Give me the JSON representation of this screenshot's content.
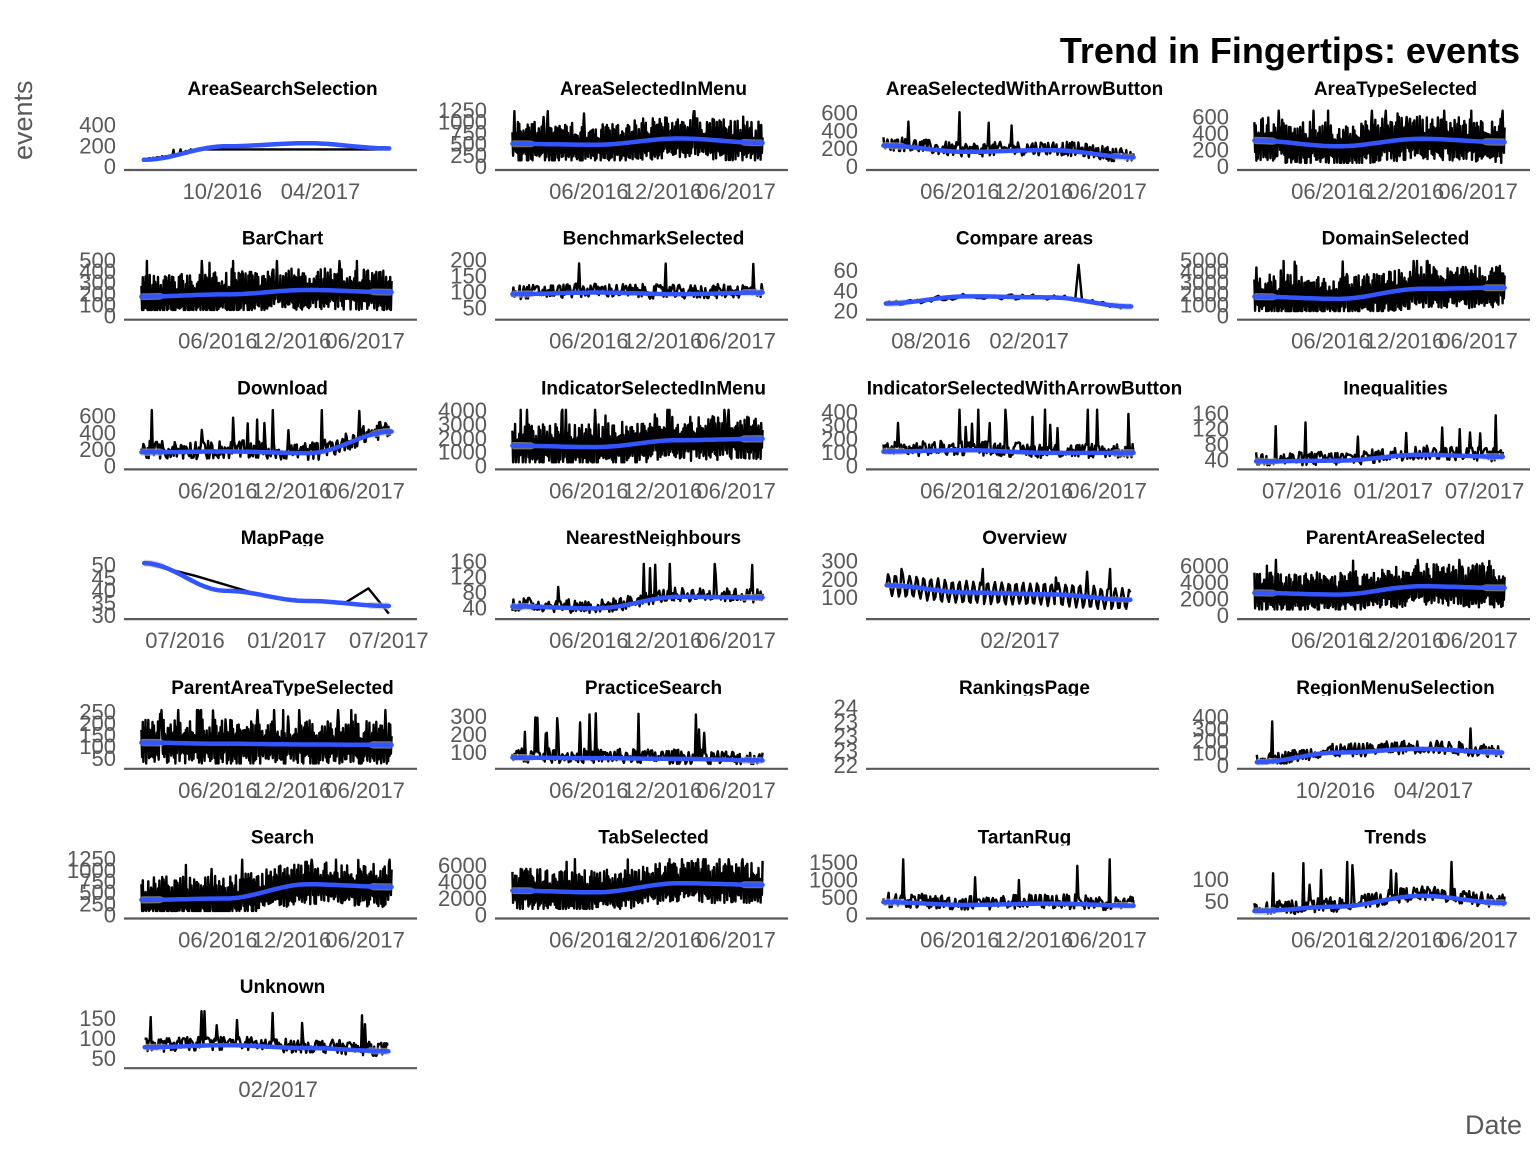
{
  "title": "Trend in Fingertips: events",
  "ylabel": "events",
  "xlabel": "Date",
  "colors": {
    "line": "#000000",
    "smooth": "#3355ff",
    "band": "#bdbdbd",
    "axis": "#595959",
    "tick": "#595959"
  },
  "chart_data": [
    {
      "type": "line",
      "title": "AreaSearchSelection",
      "xlim": [
        2016.3,
        2017.65
      ],
      "ylim": [
        0,
        560
      ],
      "yticks": [
        0,
        200,
        400
      ],
      "xticks": [
        {
          "at": 2016.75,
          "label": "10/2016"
        },
        {
          "at": 2017.25,
          "label": "04/2017"
        }
      ],
      "series": [
        {
          "x": [
            2016.35,
            2017.6
          ],
          "values": [
            60,
            170
          ]
        }
      ],
      "profile": "grow",
      "smooth": [
        70,
        200,
        230,
        180
      ]
    },
    {
      "type": "line",
      "title": "AreaSelectedInMenu",
      "xlim": [
        2015.85,
        2017.65
      ],
      "ylim": [
        0,
        1300
      ],
      "yticks": [
        0,
        250,
        500,
        750,
        1000,
        1250
      ],
      "xticks": [
        {
          "at": 2016.42,
          "label": "06/2016"
        },
        {
          "at": 2016.92,
          "label": "12/2016"
        },
        {
          "at": 2017.42,
          "label": "06/2017"
        }
      ],
      "series": [
        {
          "x": [
            2015.9,
            2017.6
          ],
          "values": [
            150,
            1250
          ]
        }
      ],
      "profile": "dense",
      "smooth": [
        520,
        500,
        640,
        540
      ]
    },
    {
      "type": "line",
      "title": "AreaSelectedWithArrowButton",
      "xlim": [
        2015.85,
        2017.65
      ],
      "ylim": [
        0,
        650
      ],
      "yticks": [
        0,
        200,
        400,
        600
      ],
      "xticks": [
        {
          "at": 2016.42,
          "label": "06/2016"
        },
        {
          "at": 2016.92,
          "label": "12/2016"
        },
        {
          "at": 2017.42,
          "label": "06/2017"
        }
      ],
      "series": [
        {
          "x": [
            2015.9,
            2017.6
          ],
          "values": [
            40,
            620
          ]
        }
      ],
      "profile": "spiky",
      "smooth": [
        240,
        170,
        190,
        110
      ]
    },
    {
      "type": "line",
      "title": "AreaTypeSelected",
      "xlim": [
        2015.85,
        2017.65
      ],
      "ylim": [
        0,
        700
      ],
      "yticks": [
        0,
        200,
        400,
        600
      ],
      "xticks": [
        {
          "at": 2016.42,
          "label": "06/2016"
        },
        {
          "at": 2016.92,
          "label": "12/2016"
        },
        {
          "at": 2017.42,
          "label": "06/2017"
        }
      ],
      "series": [
        {
          "x": [
            2015.9,
            2017.6
          ],
          "values": [
            50,
            680
          ]
        }
      ],
      "profile": "dense",
      "smooth": [
        320,
        250,
        340,
        300
      ]
    },
    {
      "type": "line",
      "title": "BarChart",
      "xlim": [
        2015.85,
        2017.65
      ],
      "ylim": [
        0,
        520
      ],
      "yticks": [
        0,
        100,
        200,
        300,
        400,
        500
      ],
      "xticks": [
        {
          "at": 2016.42,
          "label": "06/2016"
        },
        {
          "at": 2016.92,
          "label": "12/2016"
        },
        {
          "at": 2017.42,
          "label": "06/2017"
        }
      ],
      "series": [
        {
          "x": [
            2015.9,
            2017.6
          ],
          "values": [
            60,
            500
          ]
        }
      ],
      "profile": "dense",
      "smooth": [
        180,
        200,
        240,
        220
      ]
    },
    {
      "type": "line",
      "title": "BenchmarkSelected",
      "xlim": [
        2015.85,
        2017.65
      ],
      "ylim": [
        25,
        205
      ],
      "yticks": [
        50,
        100,
        150,
        200
      ],
      "xticks": [
        {
          "at": 2016.42,
          "label": "06/2016"
        },
        {
          "at": 2016.92,
          "label": "12/2016"
        },
        {
          "at": 2017.42,
          "label": "06/2017"
        }
      ],
      "series": [
        {
          "x": [
            2015.9,
            2017.6
          ],
          "values": [
            30,
            190
          ]
        }
      ],
      "profile": "spiky",
      "smooth": [
        95,
        100,
        95,
        100
      ]
    },
    {
      "type": "line",
      "title": "Compare areas",
      "xlim": [
        2016.3,
        2017.65
      ],
      "ylim": [
        15,
        72
      ],
      "yticks": [
        20,
        40,
        60
      ],
      "xticks": [
        {
          "at": 2016.58,
          "label": "08/2016"
        },
        {
          "at": 2017.08,
          "label": "02/2017"
        }
      ],
      "series": [
        {
          "x": [
            2016.35,
            2017.6
          ],
          "values": [
            20,
            66
          ]
        }
      ],
      "profile": "sparse",
      "smooth": [
        28,
        35,
        34,
        25
      ]
    },
    {
      "type": "line",
      "title": "DomainSelected",
      "xlim": [
        2015.85,
        2017.65
      ],
      "ylim": [
        0,
        5200
      ],
      "yticks": [
        0,
        1000,
        2000,
        3000,
        4000,
        5000
      ],
      "xticks": [
        {
          "at": 2016.42,
          "label": "06/2016"
        },
        {
          "at": 2016.92,
          "label": "12/2016"
        },
        {
          "at": 2017.42,
          "label": "06/2017"
        }
      ],
      "series": [
        {
          "x": [
            2015.9,
            2017.6
          ],
          "values": [
            500,
            5000
          ]
        }
      ],
      "profile": "dense",
      "smooth": [
        1800,
        1600,
        2500,
        2600
      ]
    },
    {
      "type": "line",
      "title": "Download",
      "xlim": [
        2015.85,
        2017.65
      ],
      "ylim": [
        0,
        700
      ],
      "yticks": [
        0,
        200,
        400,
        600
      ],
      "xticks": [
        {
          "at": 2016.42,
          "label": "06/2016"
        },
        {
          "at": 2016.92,
          "label": "12/2016"
        },
        {
          "at": 2017.42,
          "label": "06/2017"
        }
      ],
      "series": [
        {
          "x": [
            2015.9,
            2017.6
          ],
          "values": [
            30,
            680
          ]
        }
      ],
      "profile": "rise",
      "smooth": [
        170,
        180,
        160,
        420
      ]
    },
    {
      "type": "line",
      "title": "IndicatorSelectedInMenu",
      "xlim": [
        2015.85,
        2017.65
      ],
      "ylim": [
        0,
        4200
      ],
      "yticks": [
        0,
        1000,
        2000,
        3000,
        4000
      ],
      "xticks": [
        {
          "at": 2016.42,
          "label": "06/2016"
        },
        {
          "at": 2016.92,
          "label": "12/2016"
        },
        {
          "at": 2017.42,
          "label": "06/2017"
        }
      ],
      "series": [
        {
          "x": [
            2015.9,
            2017.6
          ],
          "values": [
            300,
            4100
          ]
        }
      ],
      "profile": "dense",
      "smooth": [
        1500,
        1400,
        1900,
        2000
      ]
    },
    {
      "type": "line",
      "title": "IndicatorSelectedWithArrowButton",
      "xlim": [
        2015.85,
        2017.65
      ],
      "ylim": [
        0,
        430
      ],
      "yticks": [
        0,
        100,
        200,
        300,
        400
      ],
      "xticks": [
        {
          "at": 2016.42,
          "label": "06/2016"
        },
        {
          "at": 2016.92,
          "label": "12/2016"
        },
        {
          "at": 2017.42,
          "label": "06/2017"
        }
      ],
      "series": [
        {
          "x": [
            2015.9,
            2017.6
          ],
          "values": [
            20,
            420
          ]
        }
      ],
      "profile": "spiky",
      "smooth": [
        110,
        120,
        100,
        100
      ]
    },
    {
      "type": "line",
      "title": "Inequalities",
      "xlim": [
        2016.2,
        2017.65
      ],
      "ylim": [
        25,
        175
      ],
      "yticks": [
        40,
        80,
        120,
        160
      ],
      "xticks": [
        {
          "at": 2016.5,
          "label": "07/2016"
        },
        {
          "at": 2017.0,
          "label": "01/2017"
        },
        {
          "at": 2017.5,
          "label": "07/2017"
        }
      ],
      "series": [
        {
          "x": [
            2016.25,
            2017.6
          ],
          "values": [
            28,
            160
          ]
        }
      ],
      "profile": "grow",
      "smooth": [
        38,
        40,
        55,
        50
      ]
    },
    {
      "type": "line",
      "title": "MapPage",
      "xlim": [
        2016.25,
        2017.55
      ],
      "ylim": [
        30,
        53
      ],
      "yticks": [
        30,
        35,
        40,
        45,
        50
      ],
      "xticks": [
        {
          "at": 2016.5,
          "label": "07/2016"
        },
        {
          "at": 2017.0,
          "label": "01/2017"
        },
        {
          "at": 2017.5,
          "label": "07/2017"
        }
      ],
      "series": [
        {
          "x": [
            2016.3,
            2016.55,
            2016.8,
            2016.95,
            2017.15,
            2017.28,
            2017.4,
            2017.5
          ],
          "values": [
            51,
            46,
            40,
            37,
            36,
            35,
            41,
            31
          ]
        }
      ],
      "profile": "few",
      "smooth": [
        51,
        40,
        36,
        34
      ]
    },
    {
      "type": "line",
      "title": "NearestNeighbours",
      "xlim": [
        2015.85,
        2017.65
      ],
      "ylim": [
        20,
        170
      ],
      "yticks": [
        40,
        80,
        120,
        160
      ],
      "xticks": [
        {
          "at": 2016.42,
          "label": "06/2016"
        },
        {
          "at": 2016.92,
          "label": "12/2016"
        },
        {
          "at": 2017.42,
          "label": "06/2017"
        }
      ],
      "series": [
        {
          "x": [
            2015.9,
            2017.6
          ],
          "values": [
            25,
            155
          ]
        }
      ],
      "profile": "grow",
      "smooth": [
        45,
        40,
        70,
        68
      ]
    },
    {
      "type": "line",
      "title": "Overview",
      "xlim": [
        2016.4,
        2017.65
      ],
      "ylim": [
        0,
        320
      ],
      "yticks": [
        100,
        200,
        300
      ],
      "xticks": [
        {
          "at": 2017.08,
          "label": "02/2017"
        }
      ],
      "series": [
        {
          "x": [
            2016.45,
            2017.6
          ],
          "values": [
            40,
            260
          ]
        }
      ],
      "profile": "wave",
      "smooth": [
        170,
        130,
        120,
        90
      ]
    },
    {
      "type": "line",
      "title": "ParentAreaSelected",
      "xlim": [
        2015.85,
        2017.65
      ],
      "ylim": [
        0,
        7000
      ],
      "yticks": [
        0,
        2000,
        4000,
        6000
      ],
      "xticks": [
        {
          "at": 2016.42,
          "label": "06/2016"
        },
        {
          "at": 2016.92,
          "label": "12/2016"
        },
        {
          "at": 2017.42,
          "label": "06/2017"
        }
      ],
      "series": [
        {
          "x": [
            2015.9,
            2017.6
          ],
          "values": [
            800,
            6800
          ]
        }
      ],
      "profile": "dense",
      "smooth": [
        2800,
        2600,
        3600,
        3400
      ]
    },
    {
      "type": "line",
      "title": "ParentAreaTypeSelected",
      "xlim": [
        2015.85,
        2017.65
      ],
      "ylim": [
        20,
        270
      ],
      "yticks": [
        50,
        100,
        150,
        200,
        250
      ],
      "xticks": [
        {
          "at": 2016.42,
          "label": "06/2016"
        },
        {
          "at": 2016.92,
          "label": "12/2016"
        },
        {
          "at": 2017.42,
          "label": "06/2017"
        }
      ],
      "series": [
        {
          "x": [
            2015.9,
            2017.6
          ],
          "values": [
            30,
            260
          ]
        }
      ],
      "profile": "dense",
      "smooth": [
        120,
        115,
        112,
        110
      ]
    },
    {
      "type": "line",
      "title": "PracticeSearch",
      "xlim": [
        2015.85,
        2017.65
      ],
      "ylim": [
        30,
        350
      ],
      "yticks": [
        100,
        200,
        300
      ],
      "xticks": [
        {
          "at": 2016.42,
          "label": "06/2016"
        },
        {
          "at": 2016.92,
          "label": "12/2016"
        },
        {
          "at": 2017.42,
          "label": "06/2017"
        }
      ],
      "series": [
        {
          "x": [
            2015.9,
            2017.6
          ],
          "values": [
            40,
            330
          ]
        }
      ],
      "profile": "flat",
      "smooth": [
        75,
        72,
        68,
        60
      ]
    },
    {
      "type": "line",
      "title": "RankingsPage",
      "xlim": [
        2016.4,
        2017.65
      ],
      "ylim": [
        22,
        24
      ],
      "yticks": [
        22,
        22.5,
        23,
        23.5,
        24
      ],
      "yticklabels": [
        "22",
        "23",
        "23",
        "23",
        "24"
      ],
      "xticks": [],
      "series": [],
      "profile": "empty",
      "smooth": []
    },
    {
      "type": "line",
      "title": "RegionMenuSelection",
      "xlim": [
        2016.3,
        2017.65
      ],
      "ylim": [
        0,
        480
      ],
      "yticks": [
        0,
        100,
        200,
        300,
        400
      ],
      "xticks": [
        {
          "at": 2016.75,
          "label": "10/2016"
        },
        {
          "at": 2017.25,
          "label": "04/2017"
        }
      ],
      "series": [
        {
          "x": [
            2016.35,
            2017.6
          ],
          "values": [
            20,
            420
          ]
        }
      ],
      "profile": "grow",
      "smooth": [
        30,
        110,
        140,
        110
      ]
    },
    {
      "type": "line",
      "title": "Search",
      "xlim": [
        2015.85,
        2017.65
      ],
      "ylim": [
        0,
        1300
      ],
      "yticks": [
        0,
        250,
        500,
        750,
        1000,
        1250
      ],
      "xticks": [
        {
          "at": 2016.42,
          "label": "06/2016"
        },
        {
          "at": 2016.92,
          "label": "12/2016"
        },
        {
          "at": 2017.42,
          "label": "06/2017"
        }
      ],
      "series": [
        {
          "x": [
            2015.9,
            2017.6
          ],
          "values": [
            100,
            1250
          ]
        }
      ],
      "profile": "dense",
      "smooth": [
        350,
        380,
        700,
        640
      ]
    },
    {
      "type": "line",
      "title": "TabSelected",
      "xlim": [
        2015.85,
        2017.65
      ],
      "ylim": [
        0,
        7000
      ],
      "yticks": [
        0,
        2000,
        4000,
        6000
      ],
      "xticks": [
        {
          "at": 2016.42,
          "label": "06/2016"
        },
        {
          "at": 2016.92,
          "label": "12/2016"
        },
        {
          "at": 2017.42,
          "label": "06/2017"
        }
      ],
      "series": [
        {
          "x": [
            2015.9,
            2017.6
          ],
          "values": [
            800,
            6800
          ]
        }
      ],
      "profile": "dense",
      "smooth": [
        3000,
        2800,
        3900,
        3700
      ]
    },
    {
      "type": "line",
      "title": "TartanRug",
      "xlim": [
        2015.85,
        2017.65
      ],
      "ylim": [
        0,
        1650
      ],
      "yticks": [
        0,
        500,
        1000,
        1500
      ],
      "xticks": [
        {
          "at": 2016.42,
          "label": "06/2016"
        },
        {
          "at": 2016.92,
          "label": "12/2016"
        },
        {
          "at": 2017.42,
          "label": "06/2017"
        }
      ],
      "series": [
        {
          "x": [
            2015.9,
            2017.6
          ],
          "values": [
            100,
            1600
          ]
        }
      ],
      "profile": "flat",
      "smooth": [
        380,
        300,
        340,
        280
      ]
    },
    {
      "type": "line",
      "title": "Trends",
      "xlim": [
        2015.85,
        2017.65
      ],
      "ylim": [
        20,
        150
      ],
      "yticks": [
        50,
        100
      ],
      "xticks": [
        {
          "at": 2016.42,
          "label": "06/2016"
        },
        {
          "at": 2016.92,
          "label": "12/2016"
        },
        {
          "at": 2017.42,
          "label": "06/2017"
        }
      ],
      "series": [
        {
          "x": [
            2015.9,
            2017.6
          ],
          "values": [
            22,
            140
          ]
        }
      ],
      "profile": "grow",
      "smooth": [
        30,
        40,
        64,
        48
      ]
    },
    {
      "type": "line",
      "title": "Unknown",
      "xlim": [
        2016.4,
        2017.65
      ],
      "ylim": [
        35,
        180
      ],
      "yticks": [
        50,
        100,
        150
      ],
      "xticks": [
        {
          "at": 2017.08,
          "label": "02/2017"
        }
      ],
      "series": [
        {
          "x": [
            2016.45,
            2017.6
          ],
          "values": [
            45,
            170
          ]
        }
      ],
      "profile": "spiky",
      "smooth": [
        80,
        85,
        78,
        70
      ]
    }
  ]
}
